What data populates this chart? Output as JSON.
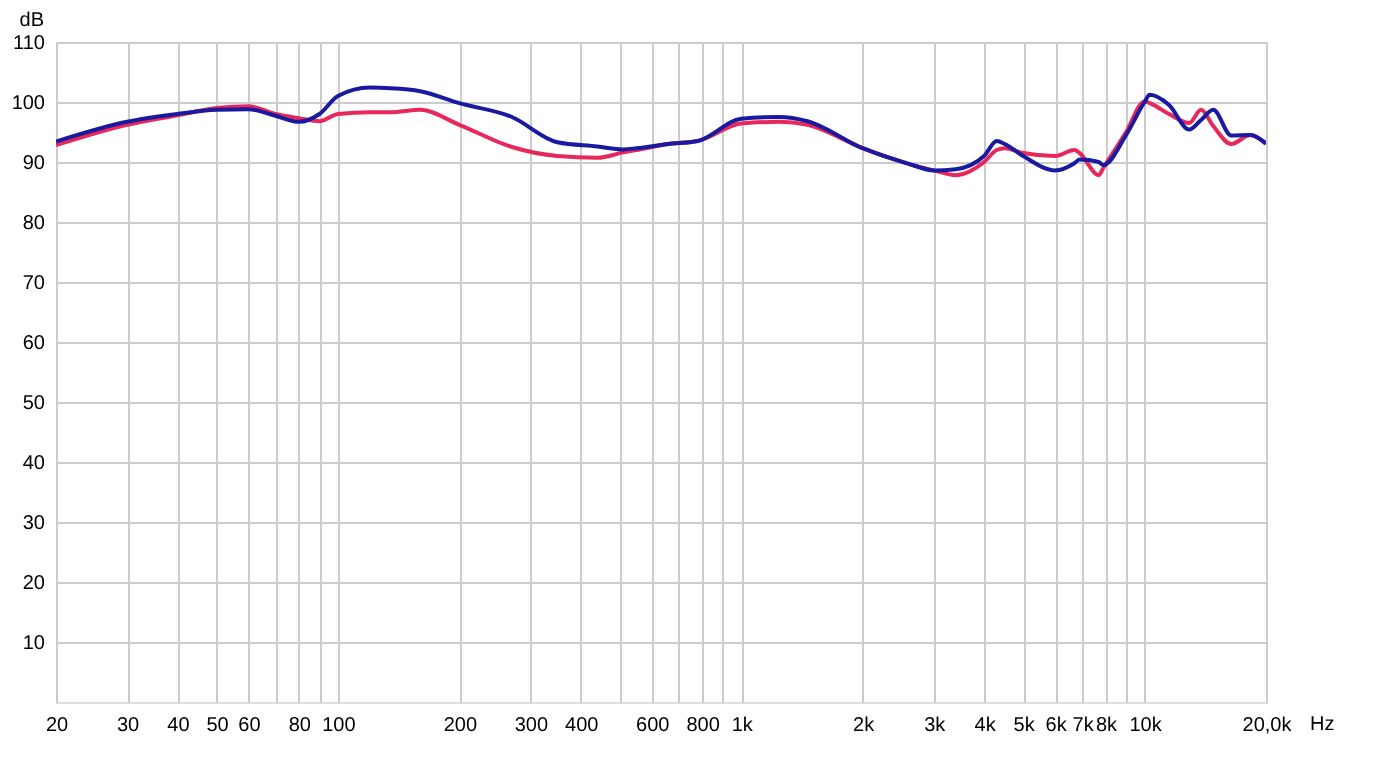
{
  "chart_data": {
    "type": "line",
    "xlabel": "Hz",
    "ylabel": "dB",
    "log": "x",
    "x": [
      20,
      30,
      40,
      50,
      60,
      70,
      80,
      90,
      100,
      120,
      135,
      160,
      200,
      270,
      350,
      440,
      510,
      550,
      660,
      780,
      1000,
      1240,
      1460,
      2000,
      2600,
      3000,
      3400,
      4000,
      4300,
      4500,
      5000,
      6000,
      6700,
      6900,
      7700,
      7900,
      9000,
      10000,
      10300,
      11500,
      12900,
      13800,
      14800,
      16400,
      18300,
      20000
    ],
    "series": [
      {
        "color": "#e8285a",
        "values": [
          92.8,
          96.2,
          97.8,
          99,
          99.3,
          98,
          97.3,
          96.8,
          98,
          98.3,
          98.3,
          98.7,
          96.2,
          92.5,
          91,
          90.7,
          91.6,
          92,
          93,
          93.5,
          96.4,
          96.7,
          96.2,
          92.3,
          89.7,
          88.6,
          87.8,
          90,
          92,
          92.3,
          91.5,
          91,
          92,
          91.5,
          87.8,
          89,
          95,
          100.1,
          99.8,
          98,
          96.5,
          98.7,
          96,
          93,
          94.5,
          93
        ]
      },
      {
        "color": "#1a1aa0",
        "values": [
          93.4,
          96.7,
          98,
          98.7,
          98.8,
          97.7,
          96.7,
          98,
          101,
          102.4,
          102.3,
          101.8,
          99.8,
          97.5,
          93.3,
          92.6,
          92.1,
          92.3,
          93,
          93.5,
          97.2,
          97.5,
          96.8,
          92.3,
          89.7,
          88.6,
          88.8,
          91,
          93.5,
          93,
          91,
          88.6,
          89.8,
          90.4,
          90,
          89.5,
          94.5,
          100,
          101.2,
          99.5,
          95.4,
          97,
          98.7,
          94.4,
          94.5,
          93.1
        ]
      }
    ],
    "xlim": [
      20,
      20000
    ],
    "xticks": [
      20,
      30,
      40,
      50,
      60,
      {
        "value": 70,
        "label": null
      },
      80,
      {
        "value": 90,
        "label": null
      },
      100,
      200,
      300,
      400,
      {
        "value": 500,
        "label": null
      },
      600,
      {
        "value": 700,
        "label": null
      },
      800,
      {
        "value": 900,
        "label": null
      },
      {
        "value": 1000,
        "label": "1k"
      },
      {
        "value": 2000,
        "label": "2k"
      },
      {
        "value": 3000,
        "label": "3k"
      },
      {
        "value": 4000,
        "label": "4k"
      },
      {
        "value": 5000,
        "label": "5k"
      },
      {
        "value": 6000,
        "label": "6k"
      },
      {
        "value": 7000,
        "label": "7k"
      },
      {
        "value": 8000,
        "label": "8k"
      },
      {
        "value": 9000,
        "label": null
      },
      {
        "value": 10000,
        "label": "10k"
      },
      {
        "value": 20000,
        "label": "20,0k"
      }
    ],
    "ylim": [
      0,
      110
    ],
    "yticks": [
      10,
      20,
      30,
      40,
      50,
      60,
      70,
      80,
      90,
      100,
      110
    ],
    "grid": true,
    "marker": "none",
    "line_style": "solid"
  }
}
